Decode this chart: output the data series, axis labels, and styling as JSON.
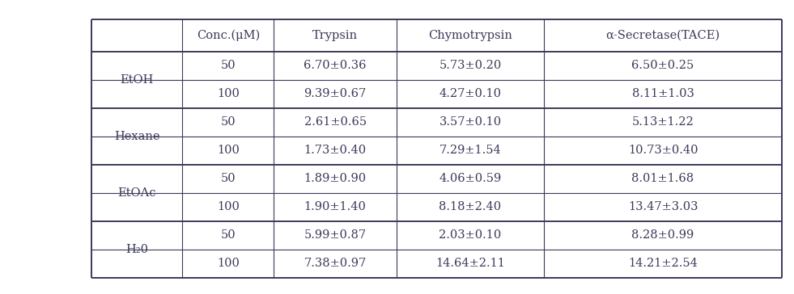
{
  "col_headers": [
    "",
    "Conc.(μM)",
    "Trypsin",
    "Chymotrypsin",
    "α-Secretase(TACE)"
  ],
  "row_groups": [
    {
      "label": "EtOH",
      "rows": [
        [
          "50",
          "6.70±0.36",
          "5.73±0.20",
          "6.50±0.25"
        ],
        [
          "100",
          "9.39±0.67",
          "4.27±0.10",
          "8.11±1.03"
        ]
      ]
    },
    {
      "label": "Hexane",
      "rows": [
        [
          "50",
          "2.61±0.65",
          "3.57±0.10",
          "5.13±1.22"
        ],
        [
          "100",
          "1.73±0.40",
          "7.29±1.54",
          "10.73±0.40"
        ]
      ]
    },
    {
      "label": "EtOAc",
      "rows": [
        [
          "50",
          "1.89±0.90",
          "4.06±0.59",
          "8.01±1.68"
        ],
        [
          "100",
          "1.90±1.40",
          "8.18±2.40",
          "13.47±3.03"
        ]
      ]
    },
    {
      "label": "H₂0",
      "rows": [
        [
          "50",
          "5.99±0.87",
          "2.03±0.10",
          "8.28±0.99"
        ],
        [
          "100",
          "7.38±0.97",
          "14.64±2.11",
          "14.21±2.54"
        ]
      ]
    }
  ],
  "font_size": 10.5,
  "text_color": "#3a3a5a",
  "line_color": "#3a3a5a",
  "bg_color": "#ffffff",
  "figsize": [
    9.81,
    3.64
  ]
}
